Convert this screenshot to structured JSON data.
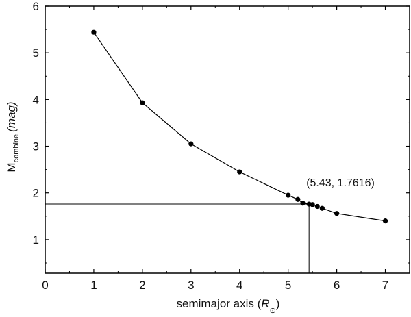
{
  "chart_data": {
    "type": "line",
    "title": "",
    "xlabel": "semimajor axis (R⊙)",
    "xlabel_main": "semimajor axis (",
    "xlabel_symbol": "R",
    "xlabel_subscript": "⊙",
    "xlabel_close": ")",
    "ylabel": "M_combine (mag)",
    "ylabel_main": "M",
    "ylabel_subscript": "combine",
    "ylabel_unit": "(mag)",
    "xlim": [
      0,
      7.5
    ],
    "ylim": [
      0.28,
      6
    ],
    "xticks": [
      0,
      1,
      2,
      3,
      4,
      5,
      6,
      7
    ],
    "xtick_labels": [
      "0",
      "1",
      "2",
      "3",
      "4",
      "5",
      "6",
      "7"
    ],
    "yticks": [
      1,
      2,
      3,
      4,
      5,
      6
    ],
    "ytick_labels": [
      "1",
      "2",
      "3",
      "4",
      "5",
      "6"
    ],
    "grid": false,
    "legend": null,
    "series": [
      {
        "name": "M_combine",
        "marker": "circle",
        "color": "#000000",
        "x": [
          1,
          2,
          3,
          4,
          5,
          5.2,
          5.3,
          5.43,
          5.5,
          5.6,
          5.7,
          6,
          7
        ],
        "y": [
          5.44,
          3.93,
          3.05,
          2.45,
          1.95,
          1.86,
          1.78,
          1.76,
          1.75,
          1.71,
          1.67,
          1.56,
          1.4
        ]
      }
    ],
    "annotations": [
      {
        "text": "(5.43, 1.7616)",
        "x": 5.43,
        "y": 1.7616,
        "guide_lines": true
      }
    ]
  }
}
